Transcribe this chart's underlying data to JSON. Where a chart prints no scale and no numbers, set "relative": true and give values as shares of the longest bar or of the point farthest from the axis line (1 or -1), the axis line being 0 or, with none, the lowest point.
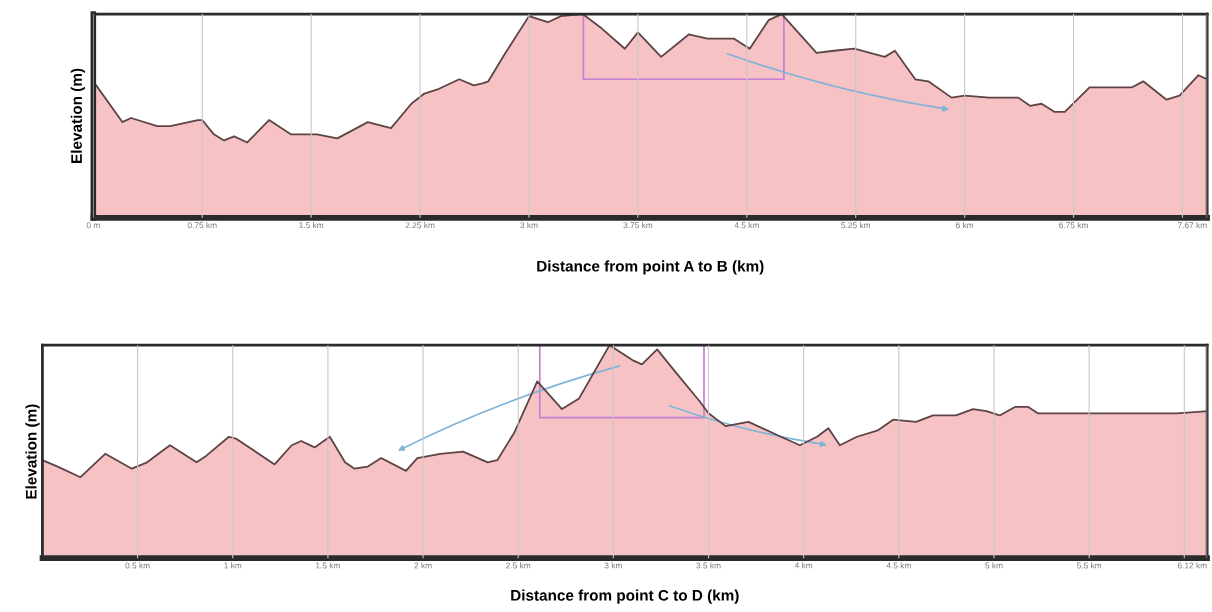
{
  "chart_data": [
    {
      "type": "area",
      "relative": true,
      "xlabel": "Distance from point A to B (km)",
      "ylabel": "Elevation (m)",
      "grid": "x",
      "xlim": [
        0,
        7.67
      ],
      "xticks": [
        {
          "value": 0,
          "label": "0 m"
        },
        {
          "value": 0.75,
          "label": "0.75 km"
        },
        {
          "value": 1.5,
          "label": "1.5 km"
        },
        {
          "value": 2.25,
          "label": "2.25 km"
        },
        {
          "value": 3,
          "label": "3 km"
        },
        {
          "value": 3.75,
          "label": "3.75 km"
        },
        {
          "value": 4.5,
          "label": "4.5 km"
        },
        {
          "value": 5.25,
          "label": "5.25 km"
        },
        {
          "value": 6,
          "label": "6 km"
        },
        {
          "value": 6.75,
          "label": "6.75 km"
        },
        {
          "value": 7.5,
          "label": null
        },
        {
          "value": 7.67,
          "label": "7.67 km"
        }
      ],
      "x": [
        0,
        0.2,
        0.26,
        0.44,
        0.53,
        0.72,
        0.75,
        0.83,
        0.9,
        0.97,
        1.06,
        1.21,
        1.36,
        1.48,
        1.54,
        1.68,
        1.89,
        2.05,
        2.19,
        2.28,
        2.37,
        2.52,
        2.62,
        2.68,
        2.72,
        2.83,
        3.0,
        3.13,
        3.22,
        3.37,
        3.5,
        3.66,
        3.75,
        3.91,
        4.1,
        4.23,
        4.41,
        4.52,
        4.65,
        4.74,
        4.98,
        5.1,
        5.24,
        5.45,
        5.52,
        5.66,
        5.75,
        5.91,
        6.0,
        6.17,
        6.37,
        6.45,
        6.53,
        6.62,
        6.69,
        6.86,
        7.15,
        7.23,
        7.39,
        7.48,
        7.61,
        7.67
      ],
      "series": [
        {
          "color": "#f5b3b5",
          "values": [
            0.67,
            0.47,
            0.49,
            0.45,
            0.45,
            0.48,
            0.48,
            0.41,
            0.38,
            0.4,
            0.37,
            0.48,
            0.41,
            0.41,
            0.41,
            0.39,
            0.47,
            0.44,
            0.56,
            0.61,
            0.63,
            0.68,
            0.65,
            0.66,
            0.67,
            0.8,
            0.99,
            0.96,
            0.99,
            1.0,
            0.93,
            0.83,
            0.91,
            0.79,
            0.9,
            0.88,
            0.88,
            0.83,
            0.97,
            1.0,
            0.81,
            0.82,
            0.83,
            0.79,
            0.82,
            0.68,
            0.67,
            0.59,
            0.6,
            0.59,
            0.59,
            0.55,
            0.56,
            0.52,
            0.52,
            0.64,
            0.64,
            0.67,
            0.58,
            0.6,
            0.7,
            0.68
          ]
        }
      ]
    },
    {
      "type": "area",
      "relative": true,
      "xlabel": "Distance from point C to D (km)",
      "ylabel": "Elevation (m)",
      "grid": "x",
      "xlim": [
        0,
        6.12
      ],
      "xticks": [
        {
          "value": 0.5,
          "label": "0.5 km"
        },
        {
          "value": 1,
          "label": "1 km"
        },
        {
          "value": 1.5,
          "label": "1.5 km"
        },
        {
          "value": 2,
          "label": "2 km"
        },
        {
          "value": 2.5,
          "label": "2.5 km"
        },
        {
          "value": 3,
          "label": "3 km"
        },
        {
          "value": 3.5,
          "label": "3.5 km"
        },
        {
          "value": 4,
          "label": "4 km"
        },
        {
          "value": 4.5,
          "label": "4.5 km"
        },
        {
          "value": 5,
          "label": "5 km"
        },
        {
          "value": 5.5,
          "label": "5.5 km"
        },
        {
          "value": 6,
          "label": null
        },
        {
          "value": 6.12,
          "label": "6.12 km"
        }
      ],
      "x": [
        0,
        0.08,
        0.2,
        0.33,
        0.47,
        0.55,
        0.67,
        0.81,
        0.86,
        0.98,
        1.02,
        1.22,
        1.31,
        1.36,
        1.43,
        1.51,
        1.59,
        1.64,
        1.71,
        1.78,
        1.91,
        1.97,
        2.09,
        2.21,
        2.34,
        2.39,
        2.48,
        2.6,
        2.73,
        2.82,
        2.98,
        3.1,
        3.15,
        3.23,
        3.33,
        3.45,
        3.5,
        3.59,
        3.71,
        3.88,
        3.98,
        4.07,
        4.13,
        4.19,
        4.28,
        4.39,
        4.47,
        4.59,
        4.68,
        4.8,
        4.89,
        4.96,
        5.03,
        5.11,
        5.18,
        5.23,
        5.41,
        5.48,
        5.96,
        6.12
      ],
      "series": [
        {
          "color": "#f5b3b5",
          "values": [
            0.46,
            0.43,
            0.38,
            0.49,
            0.42,
            0.45,
            0.53,
            0.45,
            0.48,
            0.57,
            0.56,
            0.44,
            0.53,
            0.55,
            0.52,
            0.57,
            0.45,
            0.42,
            0.43,
            0.47,
            0.41,
            0.47,
            0.49,
            0.5,
            0.45,
            0.46,
            0.59,
            0.83,
            0.7,
            0.75,
            1.0,
            0.93,
            0.91,
            0.98,
            0.87,
            0.74,
            0.68,
            0.62,
            0.64,
            0.57,
            0.53,
            0.57,
            0.61,
            0.53,
            0.57,
            0.6,
            0.65,
            0.64,
            0.67,
            0.67,
            0.7,
            0.69,
            0.67,
            0.71,
            0.71,
            0.68,
            0.68,
            0.68,
            0.68,
            0.69
          ]
        }
      ]
    }
  ]
}
